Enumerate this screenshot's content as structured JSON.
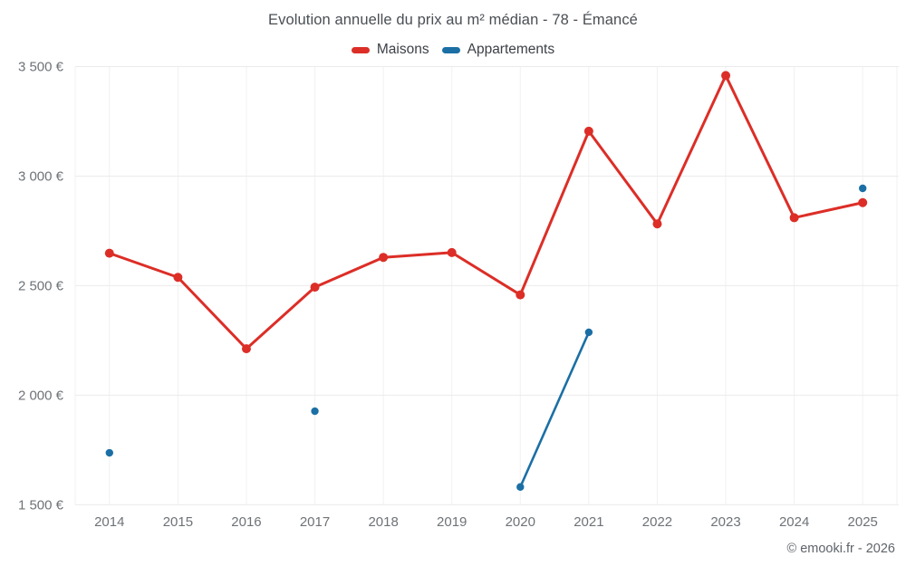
{
  "title": "Evolution annuelle du prix au m² médian - 78 - Émancé",
  "footer": "© emooki.fr - 2026",
  "legend": [
    {
      "label": "Maisons",
      "color": "#dc2e27"
    },
    {
      "label": "Appartements",
      "color": "#1b6fa5"
    }
  ],
  "chart_data": {
    "type": "line",
    "title": "Evolution annuelle du prix au m² médian - 78 - Émancé",
    "categories": [
      "2014",
      "2015",
      "2016",
      "2017",
      "2018",
      "2019",
      "2020",
      "2021",
      "2022",
      "2023",
      "2024",
      "2025"
    ],
    "series": [
      {
        "name": "Maisons",
        "color": "#dc2e27",
        "values": [
          2648,
          2538,
          2212,
          2493,
          2629,
          2651,
          2458,
          3205,
          2782,
          3459,
          2810,
          2879
        ]
      },
      {
        "name": "Appartements",
        "color": "#1b6fa5",
        "values": [
          1737,
          null,
          null,
          1927,
          null,
          null,
          1581,
          2287,
          null,
          null,
          null,
          2944
        ]
      }
    ],
    "ylim": [
      1500,
      3500
    ],
    "yticks": [
      1500,
      2000,
      2500,
      3000,
      3500
    ],
    "ytick_labels": [
      "1 500 €",
      "2 000 €",
      "2 500 €",
      "3 000 €",
      "3 500 €"
    ],
    "xlabel": "",
    "ylabel": "",
    "grid": true,
    "legend_position": "top"
  }
}
